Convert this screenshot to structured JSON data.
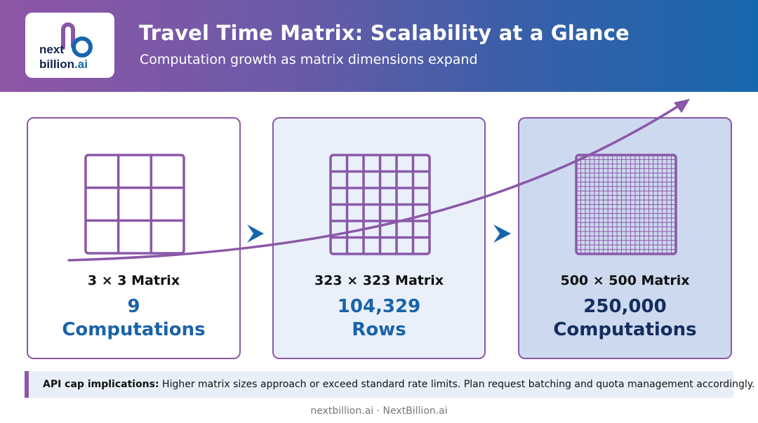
{
  "header": {
    "title": "Travel Time Matrix: Scalability at a Glance",
    "subtitle": "Computation growth as matrix dimensions expand",
    "logo": {
      "line1": "next",
      "line2_main": "billion",
      "line2_accent": ".ai",
      "icon": "nextbillion-logo-icon"
    }
  },
  "cards": [
    {
      "label": "3 × 3 Matrix",
      "value": "9",
      "unit": "Computations",
      "grid_divisions": 3
    },
    {
      "label": "323 × 323 Matrix",
      "value": "104,329",
      "unit": "Rows",
      "grid_divisions": 6
    },
    {
      "label": "500 × 500 Matrix",
      "value": "250,000",
      "unit": "Computations",
      "grid_divisions": 22
    }
  ],
  "connectors": [
    "chevron-right-icon",
    "chevron-right-icon"
  ],
  "trend": {
    "icon": "growth-arrow-icon"
  },
  "note": {
    "label": "API cap implications:",
    "text": " Higher matrix sizes approach or exceed standard rate limits. Plan request batching and quota management accordingly."
  },
  "footer": {
    "text": "nextbillion.ai · NextBillion.ai"
  },
  "colors": {
    "purple": "#8a58a8",
    "blue_text": "#1a63a8",
    "navy_text": "#142c5e",
    "chevron": "#1766ad"
  }
}
